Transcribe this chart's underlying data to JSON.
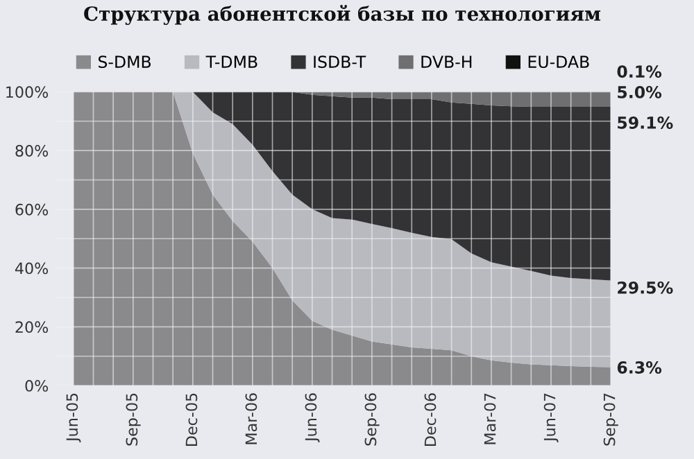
{
  "chart_data": {
    "type": "area",
    "stacked": true,
    "title": "Структура абонентской базы по технологиям",
    "categories": [
      "Jun-05",
      null,
      null,
      "Sep-05",
      null,
      null,
      "Dec-05",
      null,
      null,
      "Mar-06",
      null,
      null,
      "Jun-06",
      null,
      null,
      "Sep-06",
      null,
      null,
      "Dec-06",
      null,
      null,
      "Mar-07",
      null,
      null,
      "Jun-07",
      null,
      null,
      "Sep-07"
    ],
    "series": [
      {
        "name": "S-DMB",
        "color": "#8a8a8d",
        "values": [
          100,
          100,
          100,
          100,
          100,
          100,
          79,
          65,
          56,
          49,
          40,
          29,
          22,
          19,
          17,
          15,
          14,
          13,
          12.5,
          12,
          10,
          8.6,
          7.8,
          7.2,
          6.9,
          6.6,
          6.4,
          6.3
        ],
        "value_labels": [
          null,
          null,
          null,
          null,
          null,
          null,
          null,
          null,
          null,
          null,
          null,
          null,
          null,
          null,
          null,
          null,
          null,
          null,
          null,
          null,
          null,
          null,
          null,
          null,
          null,
          null,
          null,
          "6.3%"
        ]
      },
      {
        "name": "T-DMB",
        "color": "#b9babf",
        "values": [
          0,
          0,
          0,
          0,
          0,
          0,
          21,
          28,
          33,
          33,
          33,
          36,
          38,
          38,
          39.5,
          40,
          39.6,
          39,
          38.1,
          37.8,
          35,
          33.4,
          32.7,
          31.8,
          30.5,
          30,
          29.8,
          29.5
        ],
        "value_labels": [
          null,
          null,
          null,
          null,
          null,
          null,
          null,
          null,
          null,
          null,
          null,
          null,
          null,
          null,
          null,
          null,
          null,
          null,
          null,
          null,
          null,
          null,
          null,
          null,
          null,
          null,
          null,
          "29.5%"
        ]
      },
      {
        "name": "ISDB-T",
        "color": "#333336",
        "values": [
          0,
          0,
          0,
          0,
          0,
          0,
          0,
          7,
          11,
          18,
          27,
          35,
          39,
          41.5,
          41.5,
          43,
          43.9,
          45.5,
          46.9,
          46.6,
          50.9,
          53.4,
          54.6,
          55.9,
          57.5,
          58.3,
          58.7,
          59.1
        ],
        "value_labels": [
          null,
          null,
          null,
          null,
          null,
          null,
          null,
          null,
          null,
          null,
          null,
          null,
          null,
          null,
          null,
          null,
          null,
          null,
          null,
          null,
          null,
          null,
          null,
          null,
          null,
          null,
          null,
          "59.1%"
        ]
      },
      {
        "name": "DVB-H",
        "color": "#6f6f72",
        "values": [
          0,
          0,
          0,
          0,
          0,
          0,
          0,
          0,
          0,
          0,
          0,
          0,
          1,
          1.5,
          2,
          2,
          2.5,
          2.5,
          2.5,
          3.5,
          4,
          4.5,
          4.8,
          5.0,
          5.0,
          5.0,
          5.0,
          5.0
        ],
        "value_labels": [
          null,
          null,
          null,
          null,
          null,
          null,
          null,
          null,
          null,
          null,
          null,
          null,
          null,
          null,
          null,
          null,
          null,
          null,
          null,
          null,
          null,
          null,
          null,
          null,
          null,
          null,
          null,
          "5.0%"
        ]
      },
      {
        "name": "EU-DAB",
        "color": "#111112",
        "values": [
          0,
          0,
          0,
          0,
          0,
          0,
          0,
          0,
          0,
          0,
          0,
          0,
          0,
          0,
          0,
          0,
          0,
          0,
          0,
          0.1,
          0.1,
          0.1,
          0.1,
          0.1,
          0.1,
          0.1,
          0.1,
          0.1
        ],
        "value_labels": [
          null,
          null,
          null,
          null,
          null,
          null,
          null,
          null,
          null,
          null,
          null,
          null,
          null,
          null,
          null,
          null,
          null,
          null,
          null,
          null,
          null,
          null,
          null,
          null,
          null,
          null,
          null,
          "0.1%"
        ]
      }
    ],
    "ylim": [
      0,
      100
    ],
    "yticks": [
      {
        "value": 0,
        "label": "0%"
      },
      {
        "value": 10,
        "label": null
      },
      {
        "value": 20,
        "label": "20%"
      },
      {
        "value": 30,
        "label": null
      },
      {
        "value": 40,
        "label": "40%"
      },
      {
        "value": 50,
        "label": null
      },
      {
        "value": 60,
        "label": "60%"
      },
      {
        "value": 70,
        "label": null
      },
      {
        "value": 80,
        "label": "80%"
      },
      {
        "value": 90,
        "label": null
      },
      {
        "value": 100,
        "label": "100%"
      }
    ],
    "grid": true,
    "legend": "top"
  }
}
